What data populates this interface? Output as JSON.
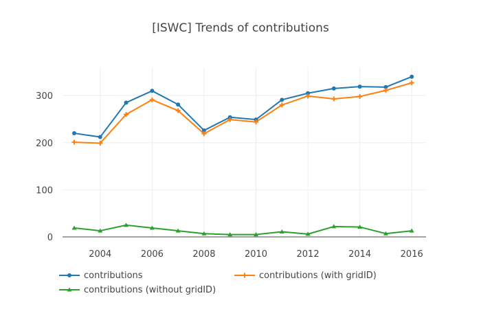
{
  "chart_data": {
    "type": "line",
    "title": "[ISWC] Trends of contributions",
    "xlabel": "",
    "ylabel": "",
    "x": [
      2003,
      2004,
      2005,
      2006,
      2007,
      2008,
      2009,
      2010,
      2011,
      2012,
      2013,
      2014,
      2015,
      2016
    ],
    "xlim": [
      2002.55,
      2016.55
    ],
    "ylim": [
      0,
      360
    ],
    "x_ticks": [
      2004,
      2006,
      2008,
      2010,
      2012,
      2014,
      2016
    ],
    "y_ticks": [
      0,
      100,
      200,
      300
    ],
    "grid": true,
    "legend_position": "bottom",
    "series": [
      {
        "name": "contributions",
        "color": "#1f77b4",
        "marker": "circle",
        "values": [
          220,
          212,
          285,
          310,
          281,
          226,
          254,
          249,
          291,
          305,
          315,
          319,
          318,
          340
        ]
      },
      {
        "name": "contributions (with gridID)",
        "color": "#ff7f0e",
        "marker": "cross",
        "values": [
          201,
          199,
          260,
          291,
          268,
          219,
          249,
          244,
          280,
          299,
          293,
          298,
          311,
          327
        ]
      },
      {
        "name": "contributions (without gridID)",
        "color": "#2ca02c",
        "marker": "triangle",
        "values": [
          19,
          13,
          25,
          19,
          13,
          7,
          5,
          5,
          11,
          6,
          22,
          21,
          7,
          13
        ]
      }
    ]
  }
}
